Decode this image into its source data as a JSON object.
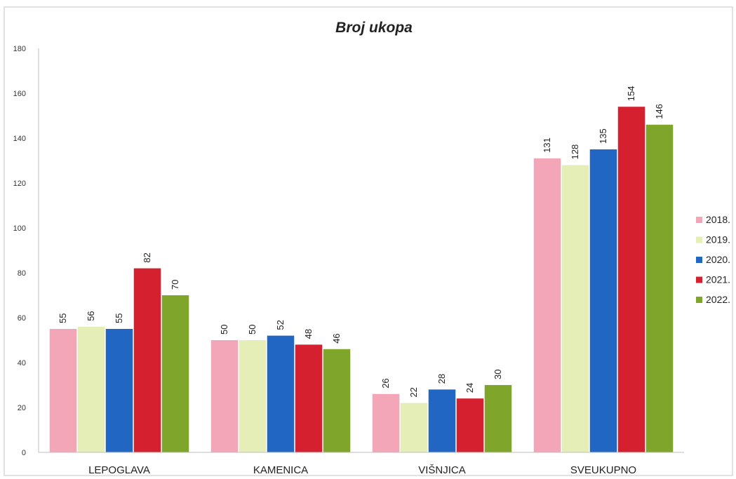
{
  "chart_data": {
    "type": "bar",
    "title": "Broj ukopa",
    "xlabel": "",
    "ylabel": "",
    "ylim": [
      0,
      180
    ],
    "yticks": [
      0,
      20,
      40,
      60,
      80,
      100,
      120,
      140,
      160,
      180
    ],
    "grid": false,
    "legend_position": "right",
    "categories": [
      "LEPOGLAVA",
      "KAMENICA",
      "VIŠNJICA",
      "SVEUKUPNO"
    ],
    "series": [
      {
        "name": "2018.",
        "color": "#f4a6b9",
        "values": [
          55,
          50,
          26,
          131
        ]
      },
      {
        "name": "2019.",
        "color": "#e6eeb8",
        "values": [
          56,
          50,
          22,
          128
        ]
      },
      {
        "name": "2020.",
        "color": "#2266c4",
        "values": [
          55,
          52,
          28,
          135
        ]
      },
      {
        "name": "2021.",
        "color": "#d4202f",
        "values": [
          82,
          48,
          24,
          154
        ]
      },
      {
        "name": "2022.",
        "color": "#7fa52a",
        "values": [
          70,
          46,
          30,
          146
        ]
      }
    ]
  }
}
